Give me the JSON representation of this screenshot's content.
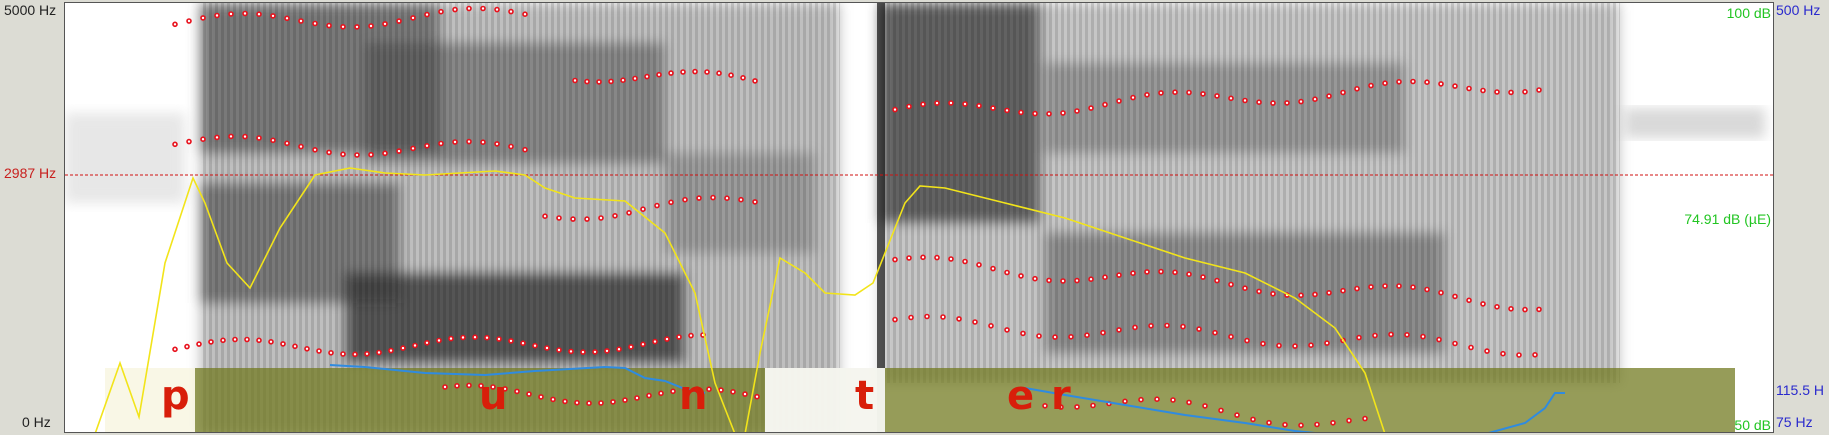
{
  "left_axis": {
    "top_label": "5000 Hz",
    "cursor_label": "2987 Hz",
    "bottom_label": "0 Hz"
  },
  "right_axis": {
    "intensity_top": "100 dB",
    "intensity_bottom": "50 dB",
    "intensity_mid": "74.91 dB (µE)",
    "pitch_top": "500 Hz",
    "pitch_bottom": "75 Hz",
    "pitch_value": "115.5 H"
  },
  "segments": [
    "p",
    "u",
    "n",
    "t",
    "e",
    "r"
  ],
  "colors": {
    "formant": "#e8121d",
    "intensity": "#f2e41a",
    "pitch": "#2f8be0",
    "segment_text": "#d81e0a",
    "hz_label": "#c8201e",
    "db_label": "#22c522",
    "pitch_label": "#2a2acd",
    "highlight": "#737b22"
  }
}
